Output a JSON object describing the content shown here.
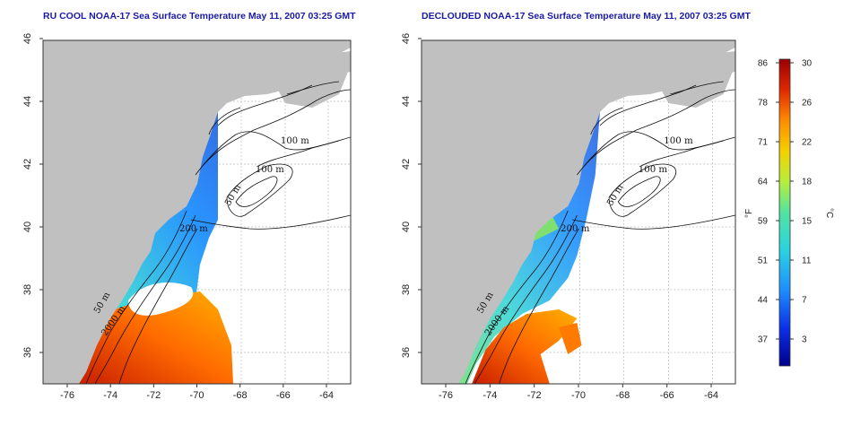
{
  "colors": {
    "land": "#c0c0c0",
    "frame": "#333333",
    "grid": "#bdbdbd",
    "contour": "#111111",
    "title": "#1a1aa8",
    "sst_scale": [
      "#00008c",
      "#0a2ee6",
      "#1e90ff",
      "#2ad4e0",
      "#52e3a0",
      "#b6ee3c",
      "#f5d000",
      "#ff8c00",
      "#e02800",
      "#9a0000"
    ]
  },
  "panels": [
    {
      "title": "RU COOL NOAA-17 Sea Surface Temperature May 11, 2007 03:25 GMT",
      "contour_labels": [
        "100 m",
        "100 m",
        "50 m",
        "200 m",
        "50 m",
        "2000 m"
      ]
    },
    {
      "title": "DECLOUDED NOAA-17 Sea Surface Temperature May 11, 2007 03:25 GMT",
      "contour_labels": [
        "100 m",
        "100 m",
        "50 m",
        "200 m",
        "50 m",
        "2000 m"
      ]
    }
  ],
  "axes": {
    "x_ticks": [
      "-76",
      "-74",
      "-72",
      "-70",
      "-68",
      "-66",
      "-64"
    ],
    "y_ticks": [
      "36",
      "38",
      "40",
      "42",
      "44",
      "46"
    ]
  },
  "colorbar": {
    "f_label": "°F",
    "c_label": "°C",
    "f_ticks": [
      "86",
      "78",
      "71",
      "64",
      "59",
      "51",
      "44",
      "37"
    ],
    "c_ticks": [
      "30",
      "26",
      "22",
      "18",
      "15",
      "11",
      "7",
      "3"
    ]
  }
}
